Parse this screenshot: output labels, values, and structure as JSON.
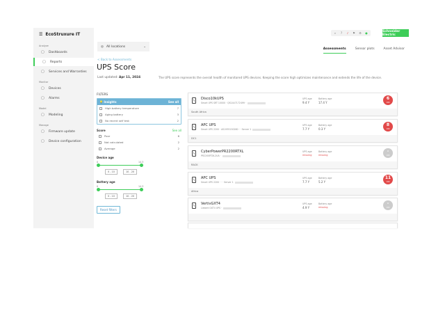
{
  "app": {
    "logo": "EcoStruxure IT",
    "brand": "Schneider Electric"
  },
  "sidebar": {
    "sections": [
      {
        "title": "Analyze",
        "items": [
          {
            "label": "Dashboards",
            "icon": "eye-icon"
          },
          {
            "label": "Reports",
            "icon": "report-icon",
            "active": true
          },
          {
            "label": "Services and Warranties",
            "icon": "shield-icon"
          }
        ]
      },
      {
        "title": "Monitor",
        "items": [
          {
            "label": "Devices",
            "icon": "device-icon"
          },
          {
            "label": "Alarms",
            "icon": "alarm-icon"
          }
        ]
      },
      {
        "title": "Model",
        "items": [
          {
            "label": "Modeling",
            "icon": "modeling-icon"
          }
        ]
      },
      {
        "title": "Manage",
        "items": [
          {
            "label": "Firmware update",
            "icon": "firmware-icon"
          },
          {
            "label": "Device configuration",
            "icon": "gear-icon"
          }
        ]
      }
    ]
  },
  "header": {
    "location": "All locations",
    "tabs": [
      "Assessments",
      "Sensor plots",
      "Asset Advisor"
    ],
    "active_tab": "Assessments"
  },
  "page": {
    "back": "< Back to Assessments",
    "title": "UPS Score",
    "updated_label": "Last updated:",
    "updated_value": "Apr 11, 2024",
    "description": "The UPS score represents the overall health of monitored UPS devices. Keeping the score high optimizes maintenance and extends the life of the device."
  },
  "filters": {
    "title": "FILTERS",
    "insights": {
      "title": "Insights",
      "see_all": "See all",
      "items": [
        {
          "label": "High battery temperature",
          "count": "7"
        },
        {
          "label": "Aging battery",
          "count": "3"
        },
        {
          "label": "No recent self test",
          "count": "2"
        }
      ]
    },
    "score": {
      "title": "Score",
      "see_all": "See all",
      "items": [
        {
          "label": "Poor",
          "count": "6"
        },
        {
          "label": "Not calculated",
          "count": "2"
        },
        {
          "label": "Average",
          "count": "2"
        }
      ]
    },
    "device_age": {
      "title": "Device age",
      "min": "0",
      "max": "14.3",
      "low": "0 - 10",
      "high": "10 - 20"
    },
    "battery_age": {
      "title": "Battery age",
      "min": "0",
      "max": "14.3",
      "low": "0 - 10",
      "high": "10 - 20"
    },
    "reset": "Reset filters"
  },
  "colors": {
    "accent": "#3dcd58",
    "poor": "#e24a4a",
    "na": "#cccccc",
    "link": "#6fb7d6"
  },
  "devices": [
    {
      "name": "Disco10kUPS",
      "sub": "Smart UPS SRT 10000 · QS1447172499 ·",
      "ups_age_label": "UPS age",
      "ups_age": "9.4 Y",
      "bat_age_label": "Battery age",
      "bat_age": "17.4 Y",
      "score": "6",
      "score_label": "100",
      "location": "South Africa"
    },
    {
      "name": "APC UPS",
      "sub": "Smart UPS 2200 · AS1935150280 · · Server 1",
      "ups_age_label": "UPS age",
      "ups_age": "7.7 Y",
      "bat_age_label": "Battery age",
      "bat_age": "0.3 Y",
      "score": "8",
      "score_label": "100",
      "location": "DC1"
    },
    {
      "name": "CyberPowerPR2200RTXL",
      "sub": "PR2200RTXL2UA ·",
      "ups_age_label": "UPS age",
      "ups_age": "missing",
      "bat_age_label": "Battery age",
      "bat_age": "missing",
      "score": "-",
      "score_label": "100",
      "location": "RACK"
    },
    {
      "name": "APC UPS",
      "sub": "Smart UPS 2200 · · · Server 1",
      "ups_age_label": "UPS age",
      "ups_age": "7.7 Y",
      "bat_age_label": "Battery age",
      "bat_age": "5.2 Y",
      "score": "11",
      "score_label": "100",
      "location": "Africa"
    },
    {
      "name": "VertivGXT4",
      "sub": "Liebert GXT4 UPS ·",
      "ups_age_label": "UPS age",
      "ups_age": "4.9 Y",
      "bat_age_label": "Battery age",
      "bat_age": "missing",
      "score": "-",
      "score_label": "100",
      "location": ""
    }
  ]
}
